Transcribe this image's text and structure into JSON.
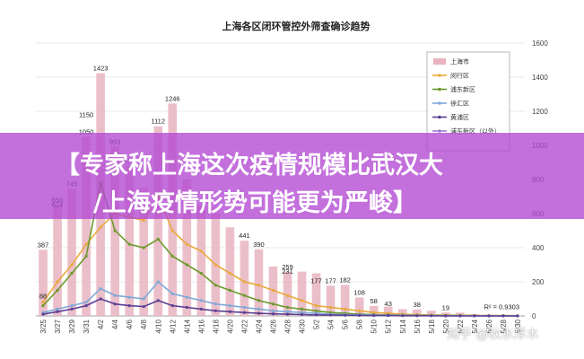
{
  "chart_data": {
    "type": "bar",
    "title": "上海各区闭环管控外筛查确诊趋势",
    "categories": [
      "3/25",
      "3/27",
      "3/29",
      "3/31",
      "4/2",
      "4/4",
      "4/6",
      "4/8",
      "4/10",
      "4/12",
      "4/14",
      "4/16",
      "4/18",
      "4/20",
      "4/22",
      "4/24",
      "4/26",
      "4/28",
      "4/30",
      "5/2",
      "5/4",
      "5/6",
      "5/8",
      "5/10",
      "5/12",
      "5/14",
      "5/16",
      "5/18",
      "5/20",
      "5/22",
      "5/24",
      "5/26",
      "5/28",
      "5/30"
    ],
    "ylim": [
      0,
      1600
    ],
    "y_ticks": [
      0,
      200,
      400,
      600,
      800,
      1000,
      1200,
      1400,
      1600
    ],
    "series": [
      {
        "name": "上海市",
        "type": "bar",
        "color": "#e8b4bf",
        "values": [
          388,
          650,
          745,
          1050,
          1423,
          993,
          877,
          750,
          1112,
          1246,
          800,
          650,
          600,
          520,
          441,
          390,
          290,
          259,
          260,
          250,
          177,
          182,
          108,
          58,
          55,
          40,
          38,
          30,
          20,
          19,
          10,
          8,
          5,
          3
        ]
      },
      {
        "name": "闵行区",
        "type": "line",
        "color": "#e9a93a",
        "values": [
          80,
          200,
          300,
          420,
          520,
          600,
          580,
          560,
          700,
          500,
          420,
          380,
          300,
          250,
          200,
          180,
          150,
          120,
          90,
          60,
          50,
          40,
          30,
          20,
          15,
          10,
          8,
          6,
          5,
          4,
          3,
          2,
          2,
          1
        ]
      },
      {
        "name": "浦东新区",
        "type": "line",
        "color": "#6b9a2c",
        "values": [
          60,
          150,
          250,
          350,
          780,
          500,
          420,
          400,
          450,
          350,
          300,
          250,
          180,
          150,
          120,
          90,
          70,
          50,
          40,
          30,
          20,
          15,
          10,
          8,
          6,
          5,
          4,
          3,
          2,
          2,
          1,
          1,
          1,
          1
        ]
      },
      {
        "name": "徐汇区",
        "type": "line",
        "color": "#7fa8d8",
        "values": [
          20,
          40,
          60,
          80,
          160,
          120,
          110,
          100,
          200,
          130,
          110,
          90,
          70,
          60,
          50,
          40,
          30,
          25,
          20,
          15,
          10,
          8,
          6,
          5,
          4,
          3,
          2,
          2,
          1,
          1,
          1,
          1,
          0,
          0
        ]
      },
      {
        "name": "黄浦区",
        "type": "line",
        "color": "#5b3f93",
        "values": [
          10,
          25,
          40,
          60,
          100,
          70,
          60,
          55,
          90,
          60,
          50,
          40,
          30,
          25,
          20,
          15,
          12,
          10,
          8,
          6,
          5,
          4,
          3,
          2,
          2,
          1,
          1,
          1,
          0,
          0,
          0,
          0,
          0,
          0
        ]
      }
    ],
    "legend_extra": "浦东新区（以外）",
    "annotations": [
      "1423",
      "1246",
      "1150",
      "1112",
      "1050",
      "993",
      "877",
      "745",
      "650",
      "624",
      "441",
      "390",
      "387",
      "259",
      "231",
      "177",
      "177",
      "182",
      "108",
      "88",
      "58",
      "43",
      "38",
      "19",
      "R² = 0.9303"
    ]
  },
  "overlay": {
    "banner_line1": "【专家称上海这次疫情规模比武汉大",
    "banner_line2": "/上海疫情形势可能更为严峻】",
    "watermark": "知乎 @秋水浮木"
  }
}
